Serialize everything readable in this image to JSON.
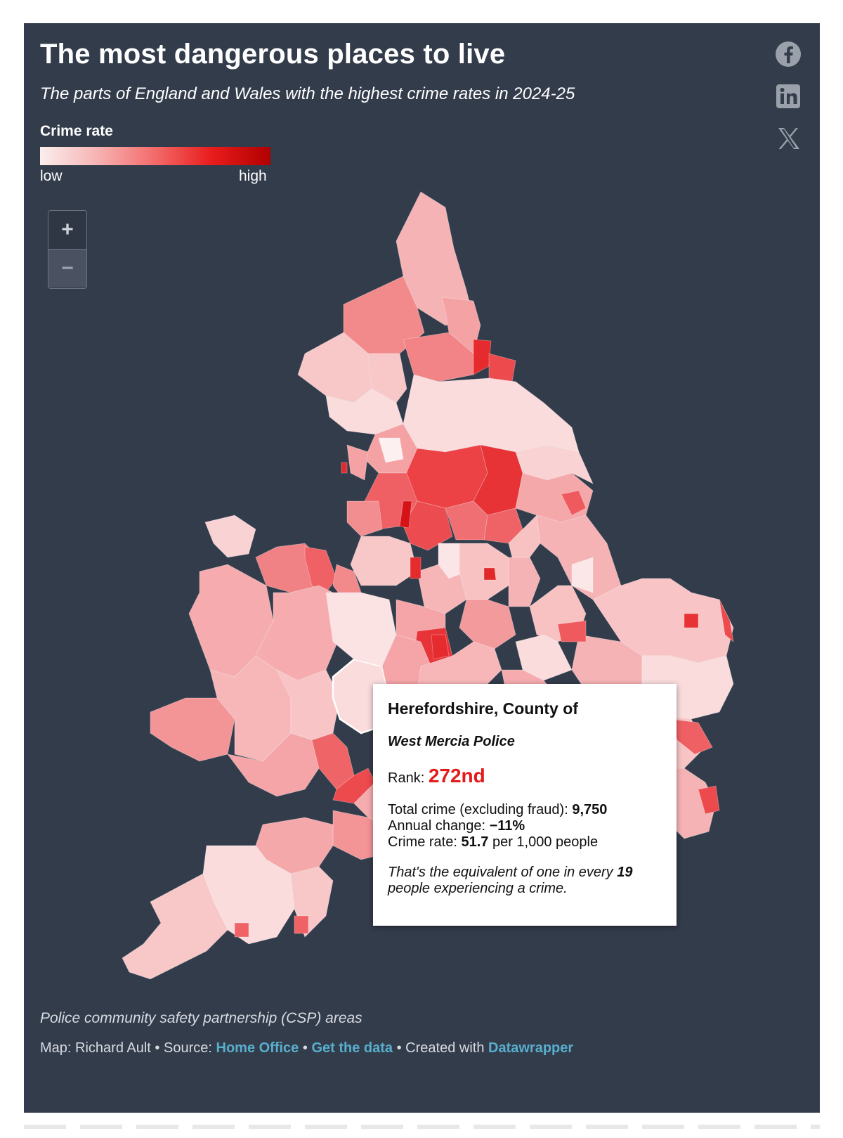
{
  "header": {
    "title": "The most dangerous places to live",
    "subtitle": "The parts of England and Wales with the highest crime rates in 2024-25"
  },
  "legend": {
    "title": "Crime rate",
    "low_label": "low",
    "high_label": "high",
    "colors": [
      "#fbeeee",
      "#f7b3b3",
      "#f36a6a",
      "#e81b1b",
      "#b10000"
    ]
  },
  "share": {
    "icons": [
      "facebook-icon",
      "linkedin-icon",
      "x-icon"
    ]
  },
  "zoom": {
    "in_label": "+",
    "out_label": "−"
  },
  "tooltip": {
    "area": "Herefordshire, County of",
    "force": "West Mercia Police",
    "rank_label": "Rank:",
    "rank_value": "272nd",
    "total_label": "Total crime (excluding fraud):",
    "total_value": "9,750",
    "change_label": "Annual change:",
    "change_value": "−11%",
    "rate_label": "Crime rate:",
    "rate_value": "51.7",
    "rate_unit": "per 1,000 people",
    "equiv_prefix": "That's the equivalent of one in every",
    "equiv_value": "19",
    "equiv_suffix": "people experiencing a crime."
  },
  "footer": {
    "notes": "Police community safety partnership (CSP) areas",
    "map_credit": "Map: Richard Ault",
    "source_label": "Source:",
    "source_link": "Home Office",
    "data_link": "Get the data",
    "created_label": "Created with",
    "created_link": "Datawrapper",
    "separator": "•"
  }
}
